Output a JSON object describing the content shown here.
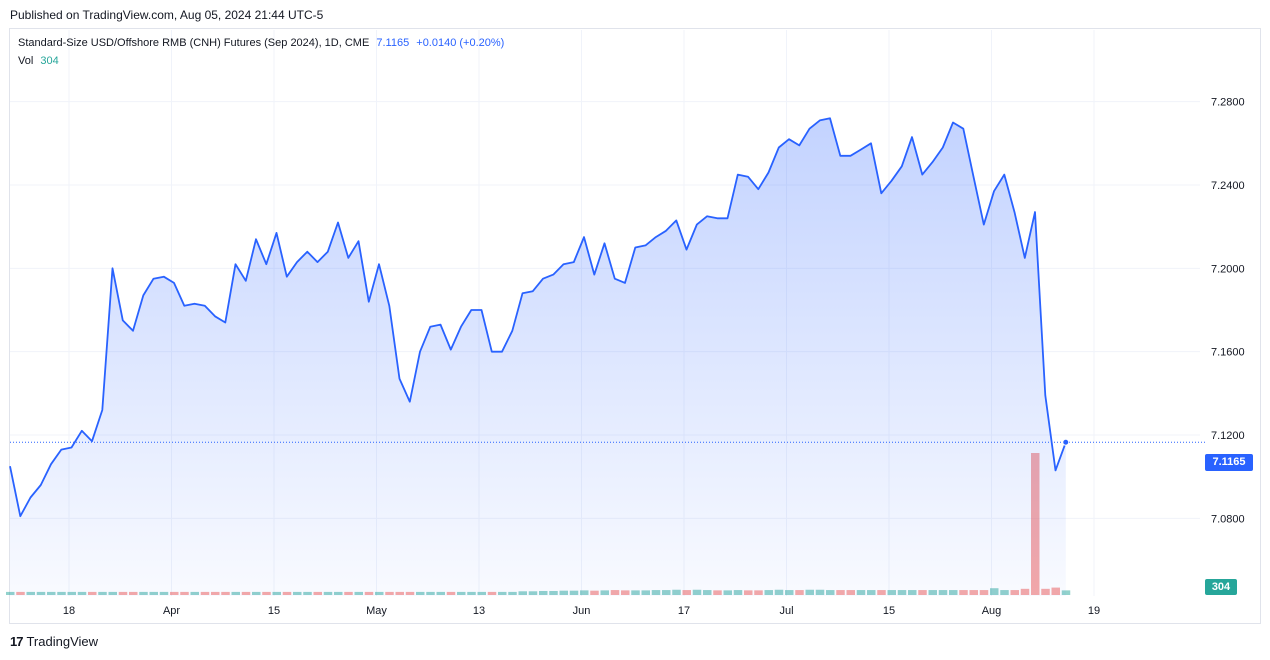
{
  "published": "Published on TradingView.com, Aug 05, 2024 21:44 UTC-5",
  "legend": {
    "title": "Standard-Size USD/Offshore RMB (CNH) Futures (Sep 2024), 1D, CME",
    "last": "7.1165",
    "change": "+0.0140 (+0.20%)",
    "vol_label": "Vol",
    "vol_value": "304"
  },
  "price_tag": "7.1165",
  "vol_tag": "304",
  "footer": {
    "logo_mark": "17",
    "brand": "TradingView"
  },
  "colors": {
    "line": "#2962ff",
    "up_volume": "#26a69a",
    "down_volume": "#ef5350"
  },
  "chart_data": {
    "type": "area",
    "ylim": [
      7.06,
      7.3
    ],
    "y_ticks": [
      "7.2800",
      "7.2400",
      "7.2000",
      "7.1600",
      "7.1200",
      "7.0800"
    ],
    "x_ticks": [
      "18",
      "Apr",
      "15",
      "May",
      "13",
      "Jun",
      "17",
      "Jul",
      "15",
      "Aug",
      "19"
    ],
    "x_tick_bar_index": [
      4,
      14,
      24,
      34,
      44,
      54,
      64,
      74,
      84,
      94,
      104
    ],
    "series": [
      {
        "values": [
          7.105,
          7.081,
          7.09,
          7.096,
          7.106,
          7.113,
          7.114,
          7.122,
          7.117,
          7.132,
          7.2,
          7.175,
          7.17,
          7.187,
          7.195,
          7.196,
          7.193,
          7.182,
          7.183,
          7.182,
          7.177,
          7.174,
          7.202,
          7.194,
          7.214,
          7.202,
          7.217,
          7.196,
          7.203,
          7.208,
          7.203,
          7.208,
          7.222,
          7.205,
          7.213,
          7.184,
          7.202,
          7.182,
          7.147,
          7.136,
          7.16,
          7.172,
          7.173,
          7.161,
          7.172,
          7.18,
          7.18,
          7.16,
          7.16,
          7.17,
          7.188,
          7.189,
          7.195,
          7.197,
          7.202,
          7.203,
          7.215,
          7.197,
          7.212,
          7.195,
          7.193,
          7.21,
          7.211,
          7.215,
          7.218,
          7.223,
          7.209,
          7.221,
          7.225,
          7.224,
          7.224,
          7.245,
          7.244,
          7.238,
          7.246,
          7.258,
          7.262,
          7.259,
          7.267,
          7.271,
          7.272,
          7.254,
          7.254,
          7.257,
          7.26,
          7.236,
          7.242,
          7.249,
          7.263,
          7.245,
          7.251,
          7.258,
          7.27,
          7.267,
          7.244,
          7.221,
          7.237,
          7.245,
          7.227,
          7.205,
          7.227,
          7.139,
          7.103,
          7.1165
        ]
      }
    ],
    "volume": [
      {
        "v": 1,
        "c": "up"
      },
      {
        "v": 1,
        "c": "down"
      },
      {
        "v": 1,
        "c": "up"
      },
      {
        "v": 1,
        "c": "up"
      },
      {
        "v": 1,
        "c": "up"
      },
      {
        "v": 1,
        "c": "up"
      },
      {
        "v": 1,
        "c": "up"
      },
      {
        "v": 1,
        "c": "up"
      },
      {
        "v": 1,
        "c": "down"
      },
      {
        "v": 1,
        "c": "up"
      },
      {
        "v": 1,
        "c": "up"
      },
      {
        "v": 1,
        "c": "down"
      },
      {
        "v": 1,
        "c": "down"
      },
      {
        "v": 1,
        "c": "up"
      },
      {
        "v": 1,
        "c": "up"
      },
      {
        "v": 1,
        "c": "up"
      },
      {
        "v": 1,
        "c": "down"
      },
      {
        "v": 1,
        "c": "down"
      },
      {
        "v": 1,
        "c": "up"
      },
      {
        "v": 1,
        "c": "down"
      },
      {
        "v": 1,
        "c": "down"
      },
      {
        "v": 1,
        "c": "down"
      },
      {
        "v": 1,
        "c": "up"
      },
      {
        "v": 1,
        "c": "down"
      },
      {
        "v": 1,
        "c": "up"
      },
      {
        "v": 1,
        "c": "down"
      },
      {
        "v": 1,
        "c": "up"
      },
      {
        "v": 1,
        "c": "down"
      },
      {
        "v": 1,
        "c": "up"
      },
      {
        "v": 1,
        "c": "up"
      },
      {
        "v": 1,
        "c": "down"
      },
      {
        "v": 1,
        "c": "up"
      },
      {
        "v": 1,
        "c": "up"
      },
      {
        "v": 1,
        "c": "down"
      },
      {
        "v": 1,
        "c": "up"
      },
      {
        "v": 1,
        "c": "down"
      },
      {
        "v": 1,
        "c": "up"
      },
      {
        "v": 1,
        "c": "down"
      },
      {
        "v": 1,
        "c": "down"
      },
      {
        "v": 1,
        "c": "down"
      },
      {
        "v": 1,
        "c": "up"
      },
      {
        "v": 1,
        "c": "up"
      },
      {
        "v": 1,
        "c": "up"
      },
      {
        "v": 1,
        "c": "down"
      },
      {
        "v": 1,
        "c": "up"
      },
      {
        "v": 1,
        "c": "up"
      },
      {
        "v": 1,
        "c": "up"
      },
      {
        "v": 1,
        "c": "down"
      },
      {
        "v": 1,
        "c": "up"
      },
      {
        "v": 1,
        "c": "up"
      },
      {
        "v": 1.2,
        "c": "up"
      },
      {
        "v": 1.2,
        "c": "up"
      },
      {
        "v": 1.3,
        "c": "up"
      },
      {
        "v": 1.3,
        "c": "up"
      },
      {
        "v": 1.4,
        "c": "up"
      },
      {
        "v": 1.4,
        "c": "up"
      },
      {
        "v": 1.5,
        "c": "up"
      },
      {
        "v": 1.4,
        "c": "down"
      },
      {
        "v": 1.5,
        "c": "up"
      },
      {
        "v": 1.6,
        "c": "down"
      },
      {
        "v": 1.5,
        "c": "down"
      },
      {
        "v": 1.5,
        "c": "up"
      },
      {
        "v": 1.5,
        "c": "up"
      },
      {
        "v": 1.6,
        "c": "up"
      },
      {
        "v": 1.6,
        "c": "up"
      },
      {
        "v": 1.7,
        "c": "up"
      },
      {
        "v": 1.6,
        "c": "down"
      },
      {
        "v": 1.7,
        "c": "up"
      },
      {
        "v": 1.6,
        "c": "up"
      },
      {
        "v": 1.5,
        "c": "down"
      },
      {
        "v": 1.5,
        "c": "up"
      },
      {
        "v": 1.6,
        "c": "up"
      },
      {
        "v": 1.5,
        "c": "down"
      },
      {
        "v": 1.5,
        "c": "down"
      },
      {
        "v": 1.6,
        "c": "up"
      },
      {
        "v": 1.7,
        "c": "up"
      },
      {
        "v": 1.6,
        "c": "up"
      },
      {
        "v": 1.6,
        "c": "down"
      },
      {
        "v": 1.7,
        "c": "up"
      },
      {
        "v": 1.7,
        "c": "up"
      },
      {
        "v": 1.6,
        "c": "up"
      },
      {
        "v": 1.6,
        "c": "down"
      },
      {
        "v": 1.6,
        "c": "down"
      },
      {
        "v": 1.6,
        "c": "up"
      },
      {
        "v": 1.6,
        "c": "up"
      },
      {
        "v": 1.6,
        "c": "down"
      },
      {
        "v": 1.6,
        "c": "up"
      },
      {
        "v": 1.6,
        "c": "up"
      },
      {
        "v": 1.6,
        "c": "up"
      },
      {
        "v": 1.6,
        "c": "down"
      },
      {
        "v": 1.6,
        "c": "up"
      },
      {
        "v": 1.6,
        "c": "up"
      },
      {
        "v": 1.6,
        "c": "up"
      },
      {
        "v": 1.6,
        "c": "down"
      },
      {
        "v": 1.6,
        "c": "down"
      },
      {
        "v": 1.6,
        "c": "down"
      },
      {
        "v": 2.2,
        "c": "up"
      },
      {
        "v": 1.6,
        "c": "up"
      },
      {
        "v": 1.6,
        "c": "down"
      },
      {
        "v": 2.0,
        "c": "down"
      },
      {
        "v": 46,
        "c": "down"
      },
      {
        "v": 2.0,
        "c": "down"
      },
      {
        "v": 2.4,
        "c": "down"
      },
      {
        "v": 1.5,
        "c": "up"
      }
    ],
    "volume_ymax": 46,
    "last_price": 7.1165
  }
}
